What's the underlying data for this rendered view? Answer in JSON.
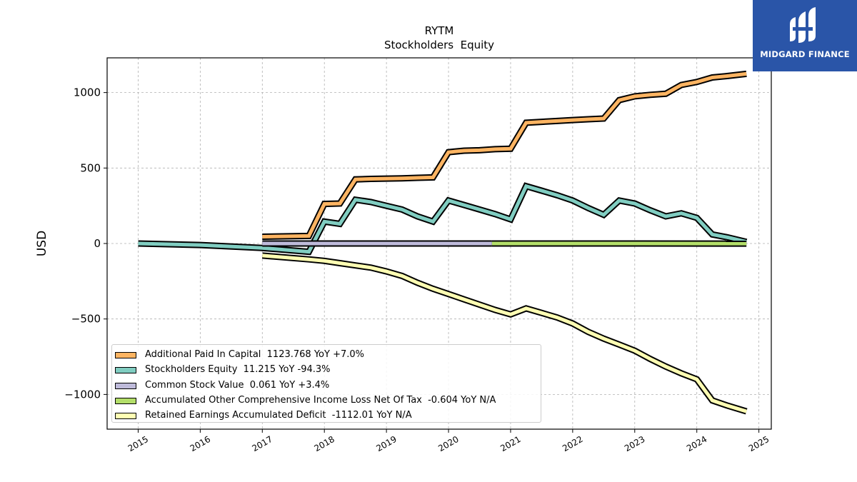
{
  "chart_data": {
    "type": "line",
    "title": "RYTM",
    "subtitle": "Stockholders  Equity",
    "ylabel": "USD",
    "xlabel": "",
    "xlim": [
      2014.5,
      2025.2
    ],
    "ylim": [
      -1230,
      1230
    ],
    "xticks": [
      "2015",
      "2016",
      "2017",
      "2018",
      "2019",
      "2020",
      "2021",
      "2022",
      "2023",
      "2024",
      "2025"
    ],
    "yticks": [
      "1000",
      "500",
      "0",
      "−500",
      "−1000"
    ],
    "ytick_values": [
      1000,
      500,
      0,
      -500,
      -1000
    ],
    "grid": true,
    "legend_position": "lower-left",
    "series": [
      {
        "name": "Additional Paid In Capital  1123.768 YoY +7.0%",
        "color": "#fdb462",
        "points": [
          [
            2017.0,
            45
          ],
          [
            2017.75,
            50
          ],
          [
            2018.0,
            262
          ],
          [
            2018.25,
            265
          ],
          [
            2018.5,
            425
          ],
          [
            2018.75,
            428
          ],
          [
            2019.0,
            430
          ],
          [
            2019.25,
            432
          ],
          [
            2019.5,
            435
          ],
          [
            2019.75,
            438
          ],
          [
            2020.0,
            605
          ],
          [
            2020.25,
            615
          ],
          [
            2020.5,
            618
          ],
          [
            2020.75,
            625
          ],
          [
            2021.0,
            628
          ],
          [
            2021.25,
            800
          ],
          [
            2021.5,
            806
          ],
          [
            2021.75,
            812
          ],
          [
            2022.0,
            818
          ],
          [
            2022.25,
            823
          ],
          [
            2022.5,
            828
          ],
          [
            2022.75,
            950
          ],
          [
            2023.0,
            975
          ],
          [
            2023.25,
            985
          ],
          [
            2023.5,
            992
          ],
          [
            2023.75,
            1050
          ],
          [
            2024.0,
            1070
          ],
          [
            2024.25,
            1100
          ],
          [
            2024.5,
            1110
          ],
          [
            2024.8,
            1124
          ]
        ]
      },
      {
        "name": "Stockholders Equity  11.215 YoY -94.3%",
        "color": "#80cdc1",
        "points": [
          [
            2015.0,
            0
          ],
          [
            2016.0,
            -10
          ],
          [
            2017.0,
            -30
          ],
          [
            2017.75,
            -55
          ],
          [
            2018.0,
            145
          ],
          [
            2018.25,
            130
          ],
          [
            2018.5,
            290
          ],
          [
            2018.75,
            275
          ],
          [
            2019.0,
            250
          ],
          [
            2019.25,
            225
          ],
          [
            2019.5,
            180
          ],
          [
            2019.75,
            145
          ],
          [
            2020.0,
            285
          ],
          [
            2020.25,
            255
          ],
          [
            2020.5,
            225
          ],
          [
            2020.75,
            195
          ],
          [
            2021.0,
            160
          ],
          [
            2021.25,
            380
          ],
          [
            2021.5,
            350
          ],
          [
            2021.75,
            320
          ],
          [
            2022.0,
            285
          ],
          [
            2022.25,
            235
          ],
          [
            2022.5,
            190
          ],
          [
            2022.75,
            285
          ],
          [
            2023.0,
            265
          ],
          [
            2023.25,
            220
          ],
          [
            2023.5,
            180
          ],
          [
            2023.75,
            200
          ],
          [
            2024.0,
            170
          ],
          [
            2024.25,
            60
          ],
          [
            2024.5,
            40
          ],
          [
            2024.8,
            11
          ]
        ]
      },
      {
        "name": "Common Stock Value  0.061 YoY +3.4%",
        "color": "#bebada",
        "points": [
          [
            2017.0,
            0.05
          ],
          [
            2020.7,
            0.06
          ]
        ]
      },
      {
        "name": "Accumulated Other Comprehensive Income Loss Net Of Tax  -0.604 YoY N/A",
        "color": "#b3de69",
        "points": [
          [
            2020.7,
            0
          ],
          [
            2024.8,
            -0.6
          ]
        ]
      },
      {
        "name": "Retained Earnings Accumulated Deficit  -1112.01 YoY N/A",
        "color": "#ffffb3",
        "points": [
          [
            2017.0,
            -80
          ],
          [
            2017.75,
            -105
          ],
          [
            2018.0,
            -115
          ],
          [
            2018.25,
            -130
          ],
          [
            2018.5,
            -145
          ],
          [
            2018.75,
            -160
          ],
          [
            2019.0,
            -185
          ],
          [
            2019.25,
            -215
          ],
          [
            2019.5,
            -260
          ],
          [
            2019.75,
            -300
          ],
          [
            2020.0,
            -335
          ],
          [
            2020.25,
            -370
          ],
          [
            2020.5,
            -405
          ],
          [
            2020.75,
            -440
          ],
          [
            2021.0,
            -470
          ],
          [
            2021.25,
            -430
          ],
          [
            2021.5,
            -460
          ],
          [
            2021.75,
            -490
          ],
          [
            2022.0,
            -530
          ],
          [
            2022.25,
            -585
          ],
          [
            2022.5,
            -630
          ],
          [
            2022.75,
            -670
          ],
          [
            2023.0,
            -710
          ],
          [
            2023.25,
            -765
          ],
          [
            2023.5,
            -815
          ],
          [
            2023.75,
            -860
          ],
          [
            2024.0,
            -900
          ],
          [
            2024.25,
            -1040
          ],
          [
            2024.5,
            -1075
          ],
          [
            2024.8,
            -1112
          ]
        ]
      }
    ]
  },
  "logo": {
    "text": "MIDGARD FINANCE",
    "color": "#2a55a8"
  }
}
